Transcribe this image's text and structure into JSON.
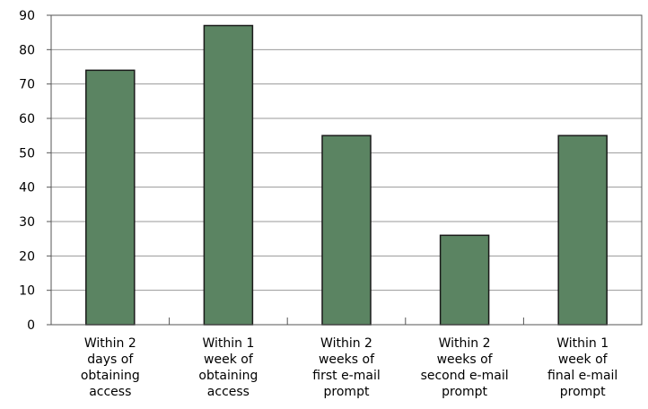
{
  "chart_data": {
    "type": "bar",
    "title": "",
    "xlabel": "",
    "ylabel": "",
    "categories": [
      [
        "Within 2",
        "days of",
        "obtaining",
        "access"
      ],
      [
        "Within 1",
        "week of",
        "obtaining",
        "access"
      ],
      [
        "Within 2",
        "weeks of",
        "first e-mail",
        "prompt"
      ],
      [
        "Within 2",
        "weeks of",
        "second e-mail",
        "prompt"
      ],
      [
        "Within 1",
        "week of",
        "final e-mail",
        "prompt"
      ]
    ],
    "values": [
      74,
      87,
      55,
      26,
      55
    ],
    "ylim": [
      0,
      90
    ],
    "yticks": [
      0,
      10,
      20,
      30,
      40,
      50,
      60,
      70,
      80,
      90
    ],
    "grid": true,
    "legend": "none",
    "colors": {
      "bar_fill": "#5b8462",
      "bar_stroke": "#1a1a1a",
      "grid": "#999999",
      "axis": "#555555"
    }
  }
}
